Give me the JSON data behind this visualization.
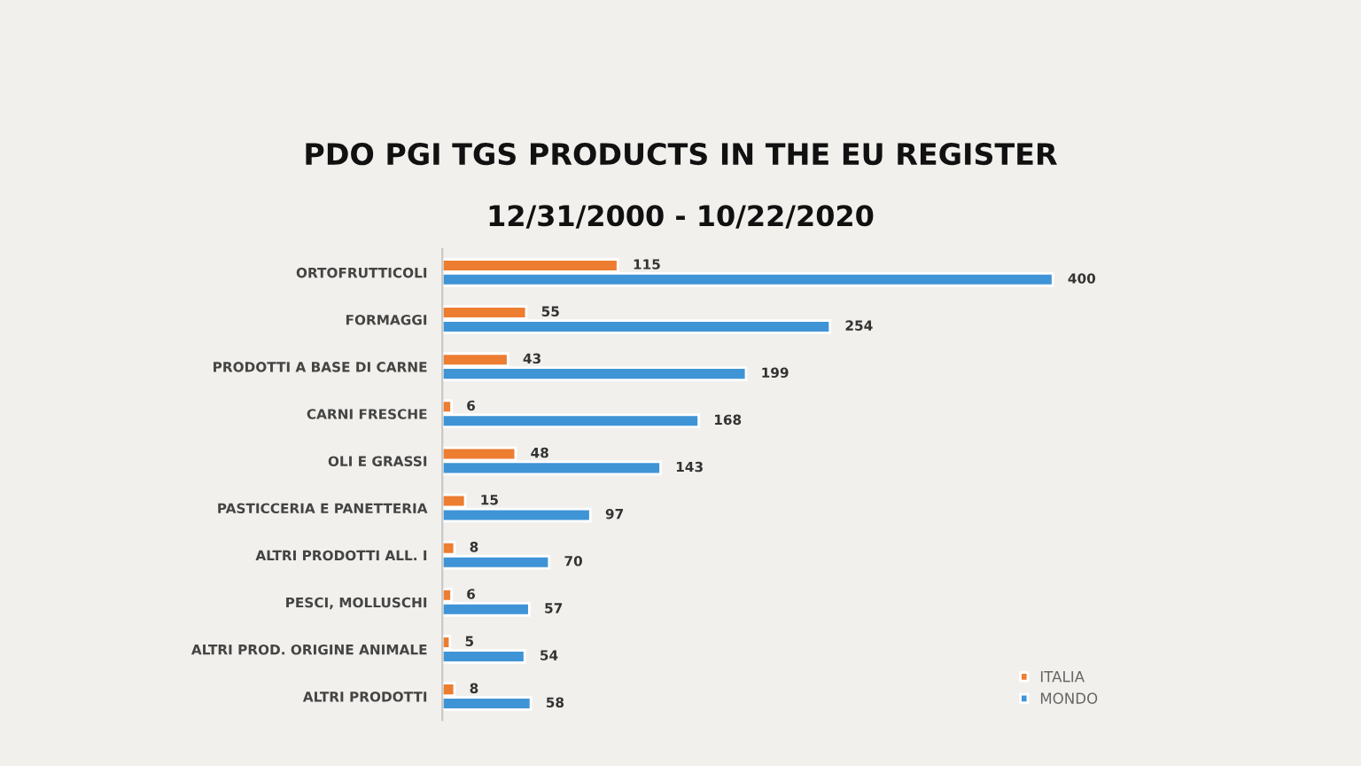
{
  "chart_data": {
    "type": "bar",
    "orientation": "horizontal",
    "title": "PDO PGI TGS PRODUCTS IN THE EU REGISTER",
    "subtitle": "12/31/2000 - 10/22/2020",
    "categories": [
      "ORTOFRUTTICOLI",
      "FORMAGGI",
      "PRODOTTI A BASE DI CARNE",
      "CARNI FRESCHE",
      "OLI E GRASSI",
      "PASTICCERIA E PANETTERIA",
      "ALTRI PRODOTTI ALL. I",
      "PESCI, MOLLUSCHI",
      "ALTRI PROD. ORIGINE ANIMALE",
      "ALTRI PRODOTTI"
    ],
    "series": [
      {
        "name": "ITALIA",
        "color": "#ed7d31",
        "values": [
          115,
          55,
          43,
          6,
          48,
          15,
          8,
          6,
          5,
          8
        ]
      },
      {
        "name": "MONDO",
        "color": "#3f94d6",
        "values": [
          400,
          254,
          199,
          168,
          143,
          97,
          70,
          57,
          54,
          58
        ]
      }
    ],
    "data_labels": true,
    "legend": "bottom right",
    "grid": false
  }
}
